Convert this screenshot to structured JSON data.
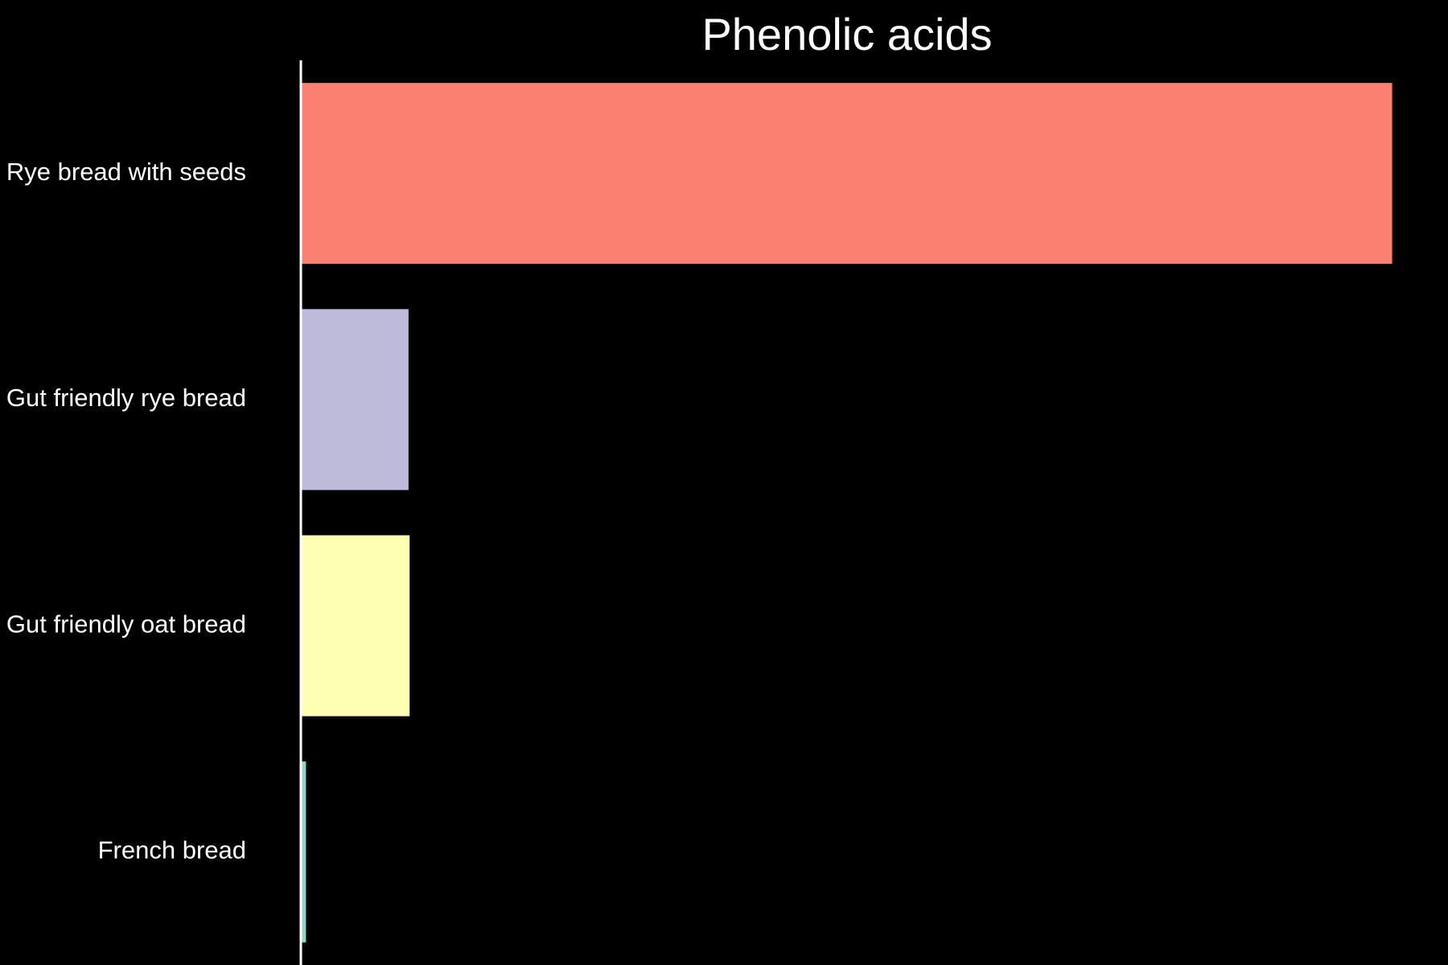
{
  "chart_data": {
    "type": "bar",
    "orientation": "horizontal",
    "title": "Phenolic acids",
    "xlabel": "",
    "ylabel": "",
    "categories": [
      "Rye bread with seeds",
      "Gut friendly rye bread",
      "Gut friendly oat bread",
      "French bread"
    ],
    "values": [
      100,
      9.8,
      9.9,
      0.4
    ],
    "colors": [
      "#fb8072",
      "#bebada",
      "#ffffb3",
      "#8dd3c7"
    ],
    "xlim": [
      0,
      103.5
    ],
    "grid": false,
    "legend": "none",
    "x_axis_visible": false
  },
  "theme": {
    "background": "#000000",
    "axis_color": "#ffffff",
    "text_color": "#ffffff"
  }
}
